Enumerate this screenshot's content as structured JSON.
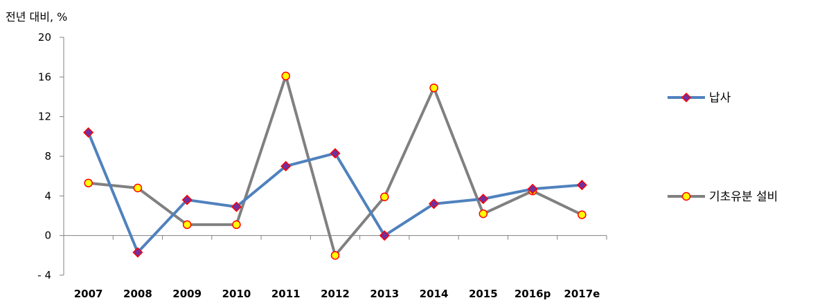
{
  "chart_data": {
    "type": "line",
    "ylabel": "전년 대비, %",
    "categories": [
      "2007",
      "2008",
      "2009",
      "2010",
      "2011",
      "2012",
      "2013",
      "2014",
      "2015",
      "2016p",
      "2017e"
    ],
    "ylim": [
      -4,
      20
    ],
    "yticks": [
      20,
      16,
      12,
      8,
      4,
      0,
      -4
    ],
    "ytick_labels": [
      "20",
      "16",
      "12",
      "8",
      "4",
      "0",
      "- 4"
    ],
    "grid": false,
    "legend_position": "right",
    "series": [
      {
        "name": "납사",
        "values": [
          10.4,
          -1.7,
          3.6,
          2.9,
          7.0,
          8.3,
          0.0,
          3.2,
          3.7,
          4.7,
          5.1
        ],
        "line_color": "#4F81BD",
        "marker": "diamond",
        "marker_fill": "#7030A0",
        "marker_edge": "#FF0000"
      },
      {
        "name": "기초유분 설비",
        "values": [
          5.3,
          4.8,
          1.1,
          1.1,
          16.1,
          -2.0,
          3.9,
          14.9,
          2.2,
          4.5,
          2.1
        ],
        "line_color": "#808080",
        "marker": "circle",
        "marker_fill": "#FFFF00",
        "marker_edge": "#FF0000"
      }
    ]
  }
}
